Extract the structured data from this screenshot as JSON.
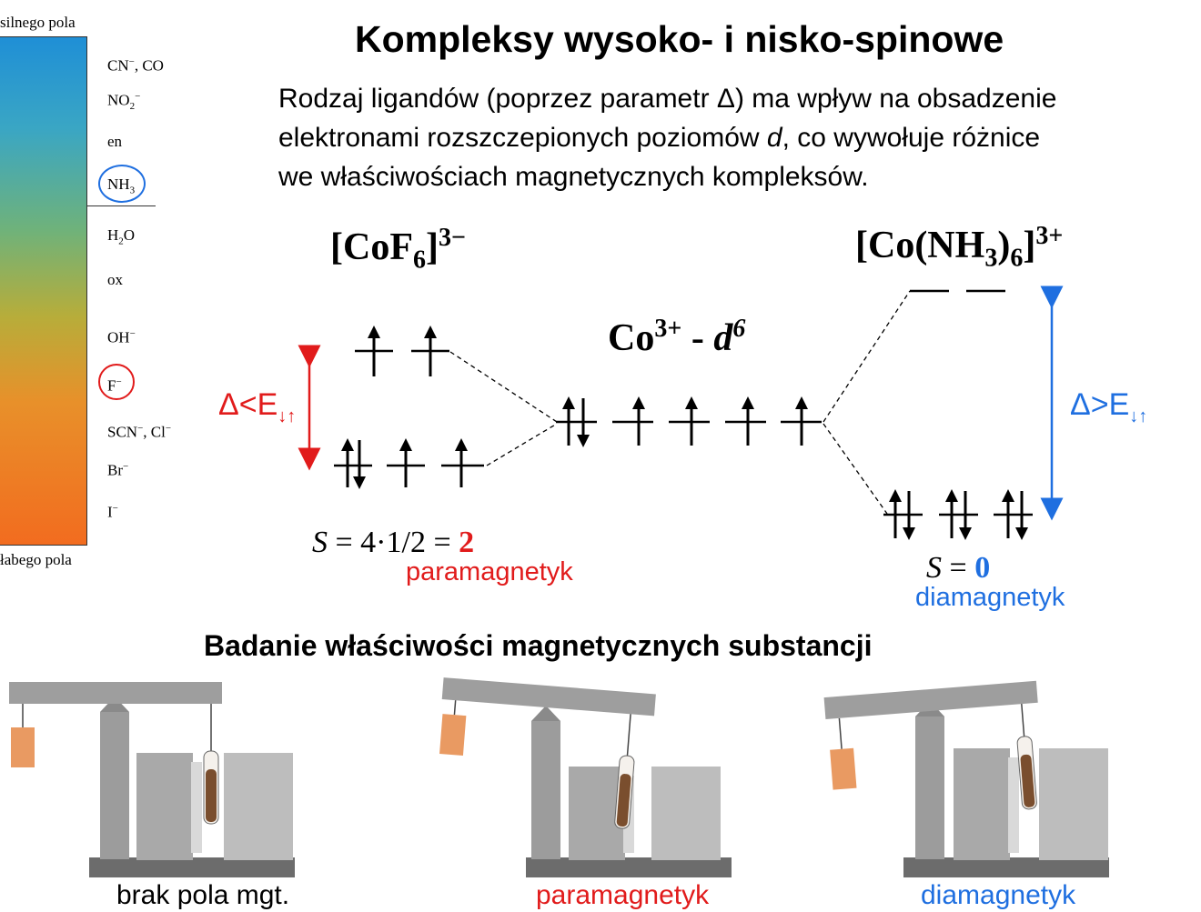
{
  "title": "Kompleksy wysoko- i nisko-spinowe",
  "intro": [
    "Rodzaj ligandów (poprzez parametr Δ) ma wpływ na obsadzenie",
    {
      "before": "elektronami rozszczepionych poziomów ",
      "italic": "d",
      "after": ", co wywołuje różnice"
    },
    "we właściwościach magnetycznych kompleksów."
  ],
  "series": {
    "strong_label": "silnego pola",
    "weak_label": "łabego pola",
    "ligands": {
      "cn_co": {
        "a": "CN",
        "a_sup": "−",
        "b": ", CO"
      },
      "no2": {
        "a": "NO",
        "sub": "2",
        "sup": "−"
      },
      "en": "en",
      "nh3": {
        "a": "NH",
        "sub": "3"
      },
      "h2o": {
        "a": "H",
        "sub": "2",
        "b": "O"
      },
      "ox": "ox",
      "oh": {
        "a": "OH",
        "sup": "−"
      },
      "f": {
        "a": "F",
        "sup": "−"
      },
      "scn_cl": {
        "a": "SCN",
        "a_sup": "−",
        "b": ", Cl",
        "b_sup": "−"
      },
      "br": {
        "a": "Br",
        "sup": "−"
      },
      "i": {
        "a": "I",
        "sup": "−"
      }
    },
    "highlight_colors": {
      "nh3": "#1f6fe0",
      "f": "#e11b1b"
    }
  },
  "high_spin": {
    "formula": {
      "open": "[CoF",
      "sub": "6",
      "close": "]",
      "charge": "3−"
    },
    "delta_label": {
      "text": "Δ<E",
      "sub": "↓↑"
    },
    "spin": {
      "s": "S",
      "expr": " = 4·1/2 = ",
      "value": "2"
    },
    "type": "paramagnetyk"
  },
  "center": {
    "ion": "Co",
    "charge": "3+",
    "dash": " - ",
    "config": "d",
    "config_sup": "6"
  },
  "low_spin": {
    "formula": {
      "open": "[Co(NH",
      "sub1": "3",
      "mid": ")",
      "sub2": "6",
      "close": "]",
      "charge": "3+"
    },
    "delta_label": {
      "text": "Δ>E",
      "sub": "↓↑"
    },
    "spin": {
      "s": "S",
      "expr": " = ",
      "value": "0"
    },
    "type": "diamagnetyk"
  },
  "colors": {
    "paramagnetic": "#e11b1b",
    "diamagnetic": "#1f6fe0"
  },
  "experiment": {
    "title": "Badanie właściwości magnetycznych substancji",
    "scenes": [
      {
        "caption": "brak pola mgt.",
        "balance_tilt_deg": 0
      },
      {
        "caption": "paramagnetyk",
        "balance_tilt_deg": 4.5
      },
      {
        "caption": "diamagnetyk",
        "balance_tilt_deg": -4.5
      }
    ]
  }
}
